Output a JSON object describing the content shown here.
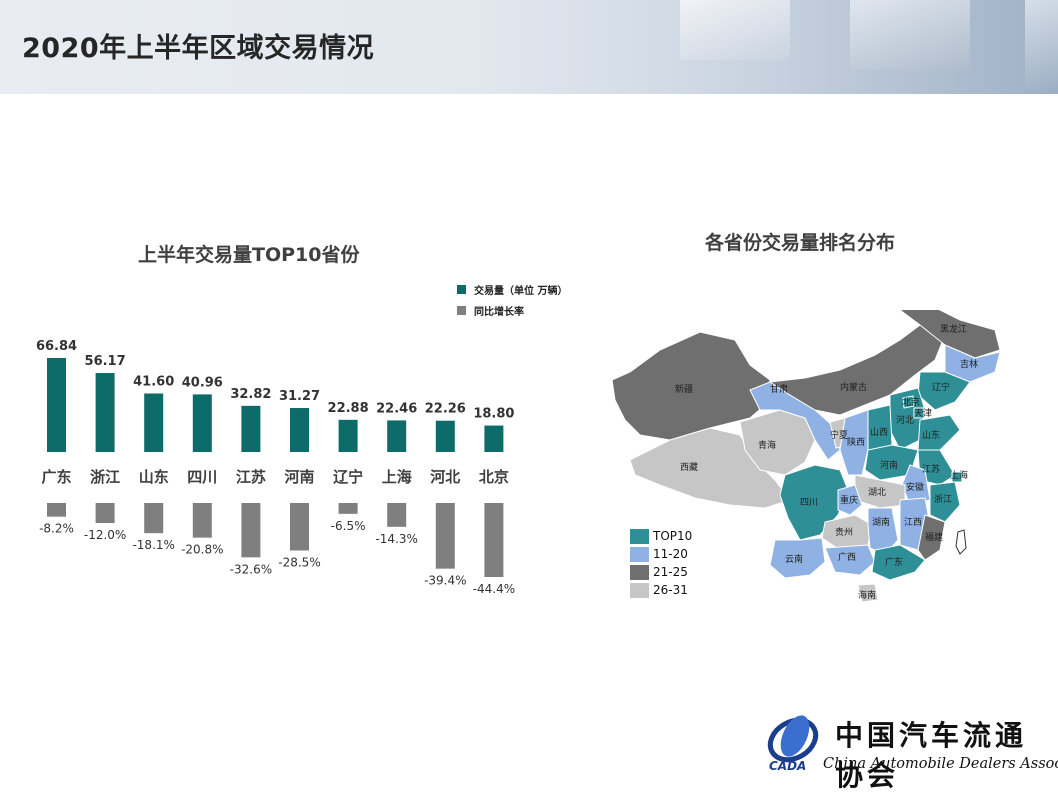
{
  "page": {
    "title": "2020年上半年区域交易情况"
  },
  "colors": {
    "teal": "#0d6b6a",
    "gray": "#7f7f7f",
    "map_top10": "#2f8f96",
    "map_11_20": "#8fb1e3",
    "map_21_25": "#6f6f70",
    "map_26_31": "#c6c6c6"
  },
  "chart_data": [
    {
      "type": "bar",
      "title": "上半年交易量TOP10省份",
      "categories": [
        "广东",
        "浙江",
        "山东",
        "四川",
        "江苏",
        "河南",
        "辽宁",
        "上海",
        "河北",
        "北京"
      ],
      "series": [
        {
          "name": "交易量（单位 万辆）",
          "values": [
            66.84,
            56.17,
            41.6,
            40.96,
            32.82,
            31.27,
            22.88,
            22.46,
            22.26,
            18.8
          ],
          "labels": [
            "66.84",
            "56.17",
            "41.60",
            "40.96",
            "32.82",
            "31.27",
            "22.88",
            "22.46",
            "22.26",
            "18.80"
          ]
        },
        {
          "name": "同比增长率",
          "values": [
            -8.2,
            -12.0,
            -18.1,
            -20.8,
            -32.6,
            -28.5,
            -6.5,
            -14.3,
            -39.4,
            -44.4
          ],
          "labels": [
            "-8.2%",
            "-12.0%",
            "-18.1%",
            "-20.8%",
            "-32.6%",
            "-28.5%",
            "-6.5%",
            "-14.3%",
            "-39.4%",
            "-44.4%"
          ]
        }
      ],
      "legend_position": "top-right",
      "grid": false
    }
  ],
  "map": {
    "title": "各省份交易量排名分布",
    "legend": [
      "TOP10",
      "11-20",
      "21-25",
      "26-31"
    ],
    "labels": [
      "新疆",
      "西藏",
      "青海",
      "甘肃",
      "内蒙古",
      "黑龙江",
      "吉林",
      "辽宁",
      "河北",
      "北京",
      "天津",
      "山西",
      "山东",
      "陕西",
      "宁夏",
      "河南",
      "江苏",
      "安徽",
      "上海",
      "湖北",
      "四川",
      "重庆",
      "浙江",
      "贵州",
      "湖南",
      "江西",
      "福建",
      "云南",
      "广西",
      "广东",
      "海南"
    ]
  },
  "logo": {
    "cn": "中国汽车流通协会",
    "en": "China Automobile Dealers Association",
    "mark": "CADA"
  }
}
